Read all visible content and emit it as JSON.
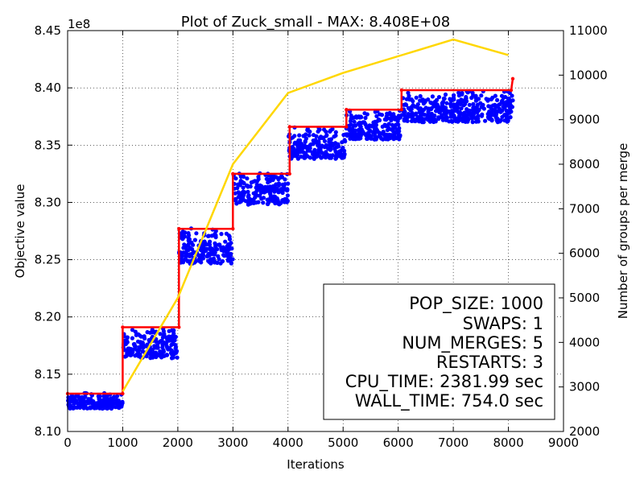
{
  "chart_data": {
    "type": "scatter",
    "title": "Plot of Zuck_small - MAX: 8.408E+08",
    "xlabel": "Iterations",
    "ylabel": "Objective value",
    "y2label": "Number of groups per merge",
    "y_offset_text": "1e8",
    "xlim": [
      0,
      9000
    ],
    "ylim": [
      8.1,
      8.45
    ],
    "y2lim": [
      2000,
      11000
    ],
    "grid": true,
    "x_ticks": [
      "0",
      "1000",
      "2000",
      "3000",
      "4000",
      "5000",
      "6000",
      "7000",
      "8000",
      "9000"
    ],
    "y_ticks": [
      "8.10",
      "8.15",
      "8.20",
      "8.25",
      "8.30",
      "8.35",
      "8.40",
      "8.45"
    ],
    "y2_ticks": [
      "2000",
      "3000",
      "4000",
      "5000",
      "6000",
      "7000",
      "8000",
      "9000",
      "10000",
      "11000"
    ],
    "series": [
      {
        "role": "population",
        "color": "#0000ff",
        "segments": [
          {
            "x": [
              0,
              1000
            ],
            "y": [
              8.12,
              8.134
            ]
          },
          {
            "x": [
              1010,
              2000
            ],
            "y": [
              8.164,
              8.19
            ]
          },
          {
            "x": [
              2020,
              3000
            ],
            "y": [
              8.246,
              8.278
            ]
          },
          {
            "x": [
              3010,
              4000
            ],
            "y": [
              8.298,
              8.326
            ]
          },
          {
            "x": [
              4010,
              5050
            ],
            "y": [
              8.338,
              8.366
            ]
          },
          {
            "x": [
              5060,
              6050
            ],
            "y": [
              8.355,
              8.381
            ]
          },
          {
            "x": [
              6060,
              8080
            ],
            "y": [
              8.37,
              8.398
            ]
          }
        ]
      },
      {
        "role": "best",
        "color": "#ff0000",
        "x": [
          0,
          1000,
          1000,
          2020,
          2020,
          3000,
          3000,
          4030,
          4030,
          5060,
          5060,
          6060,
          6060,
          8050,
          8080
        ],
        "y": [
          8.133,
          8.133,
          8.191,
          8.191,
          8.277,
          8.277,
          8.325,
          8.325,
          8.366,
          8.366,
          8.381,
          8.381,
          8.398,
          8.398,
          8.408
        ]
      },
      {
        "role": "groups per merge",
        "axis": "y2",
        "color": "#ffd700",
        "x": [
          1000,
          2000,
          3000,
          4000,
          5000,
          7000,
          8000
        ],
        "y": [
          2900,
          5000,
          8000,
          9600,
          10050,
          10800,
          10450
        ]
      }
    ]
  },
  "info_box": {
    "lines": [
      "POP_SIZE: 1000",
      "SWAPS: 1",
      "NUM_MERGES: 5",
      "RESTARTS: 3",
      "CPU_TIME: 2381.99 sec",
      "WALL_TIME: 754.0 sec"
    ]
  }
}
